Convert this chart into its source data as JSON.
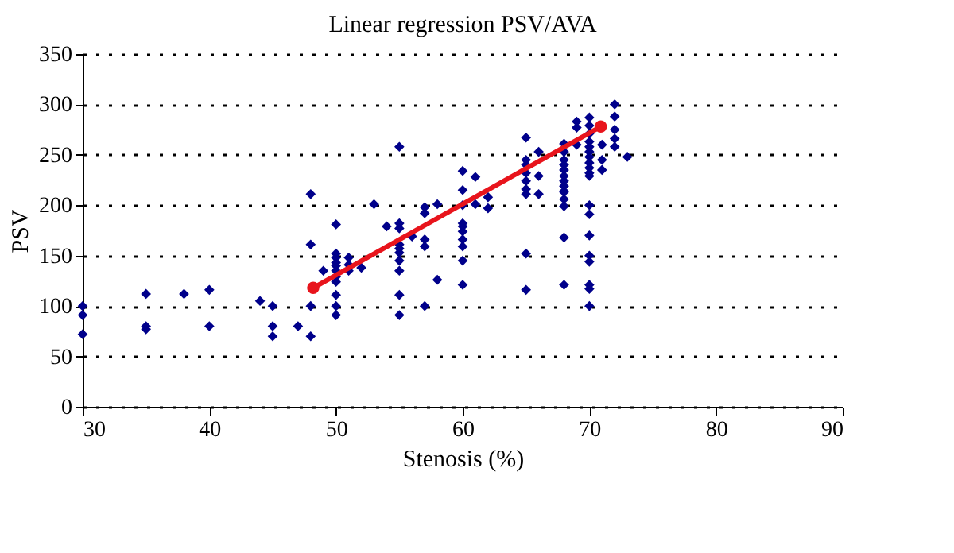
{
  "chart_data": {
    "type": "scatter",
    "title": "Linear regression PSV/AVA",
    "xlabel": "Stenosis (%)",
    "ylabel": "PSV",
    "xlim": [
      30,
      90
    ],
    "xticks": [
      30,
      40,
      50,
      60,
      70,
      80,
      90
    ],
    "ylim": [
      0,
      350
    ],
    "yticks": [
      0,
      50,
      100,
      150,
      200,
      250,
      300,
      350
    ],
    "grid": "y",
    "series": [
      {
        "marker": "diamond",
        "color": "#00008b",
        "x": [
          30,
          30,
          30,
          35,
          35,
          35,
          38,
          40,
          40,
          44,
          45,
          45,
          45,
          47,
          48,
          48,
          48,
          48,
          49,
          50,
          50,
          50,
          50,
          50,
          50,
          50,
          50,
          50,
          50,
          50,
          51,
          51,
          51,
          52,
          53,
          54,
          55,
          55,
          55,
          55,
          55,
          55,
          55,
          55,
          55,
          55,
          56,
          57,
          57,
          57,
          57,
          57,
          58,
          58,
          60,
          60,
          60,
          60,
          60,
          60,
          60,
          60,
          60,
          60,
          61,
          61,
          62,
          62,
          65,
          65,
          65,
          65,
          65,
          65,
          65,
          65,
          65,
          66,
          66,
          66,
          68,
          68,
          68,
          68,
          68,
          68,
          68,
          68,
          68,
          68,
          68,
          68,
          68,
          68,
          69,
          69,
          69,
          70,
          70,
          70,
          70,
          70,
          70,
          70,
          70,
          70,
          70,
          70,
          70,
          70,
          70,
          70,
          70,
          70,
          70,
          70,
          71,
          71,
          71,
          72,
          72,
          72,
          72,
          72,
          73
        ],
        "values": [
          100,
          91,
          72,
          112,
          80,
          77,
          112,
          116,
          80,
          105,
          100,
          80,
          70,
          80,
          70,
          100,
          161,
          211,
          135,
          181,
          152,
          148,
          143,
          140,
          135,
          129,
          124,
          111,
          100,
          91,
          148,
          141,
          135,
          138,
          201,
          179,
          258,
          182,
          177,
          161,
          157,
          153,
          145,
          135,
          111,
          91,
          169,
          198,
          192,
          166,
          159,
          100,
          201,
          126,
          234,
          215,
          200,
          182,
          179,
          174,
          166,
          159,
          145,
          121,
          228,
          201,
          208,
          197,
          267,
          245,
          240,
          232,
          224,
          216,
          211,
          152,
          116,
          253,
          229,
          211,
          261,
          253,
          245,
          240,
          235,
          229,
          224,
          219,
          213,
          214,
          206,
          199,
          168,
          121,
          283,
          277,
          260,
          287,
          279,
          271,
          263,
          258,
          253,
          248,
          242,
          237,
          232,
          229,
          200,
          191,
          170,
          150,
          144,
          121,
          117,
          100,
          260,
          245,
          235,
          300,
          288,
          275,
          266,
          258,
          248
        ]
      },
      {
        "type": "line",
        "marker": "circle",
        "line_style": "solid",
        "color": "#e8141c",
        "x": [
          48.2,
          70.9
        ],
        "values": [
          118,
          278
        ]
      }
    ]
  }
}
